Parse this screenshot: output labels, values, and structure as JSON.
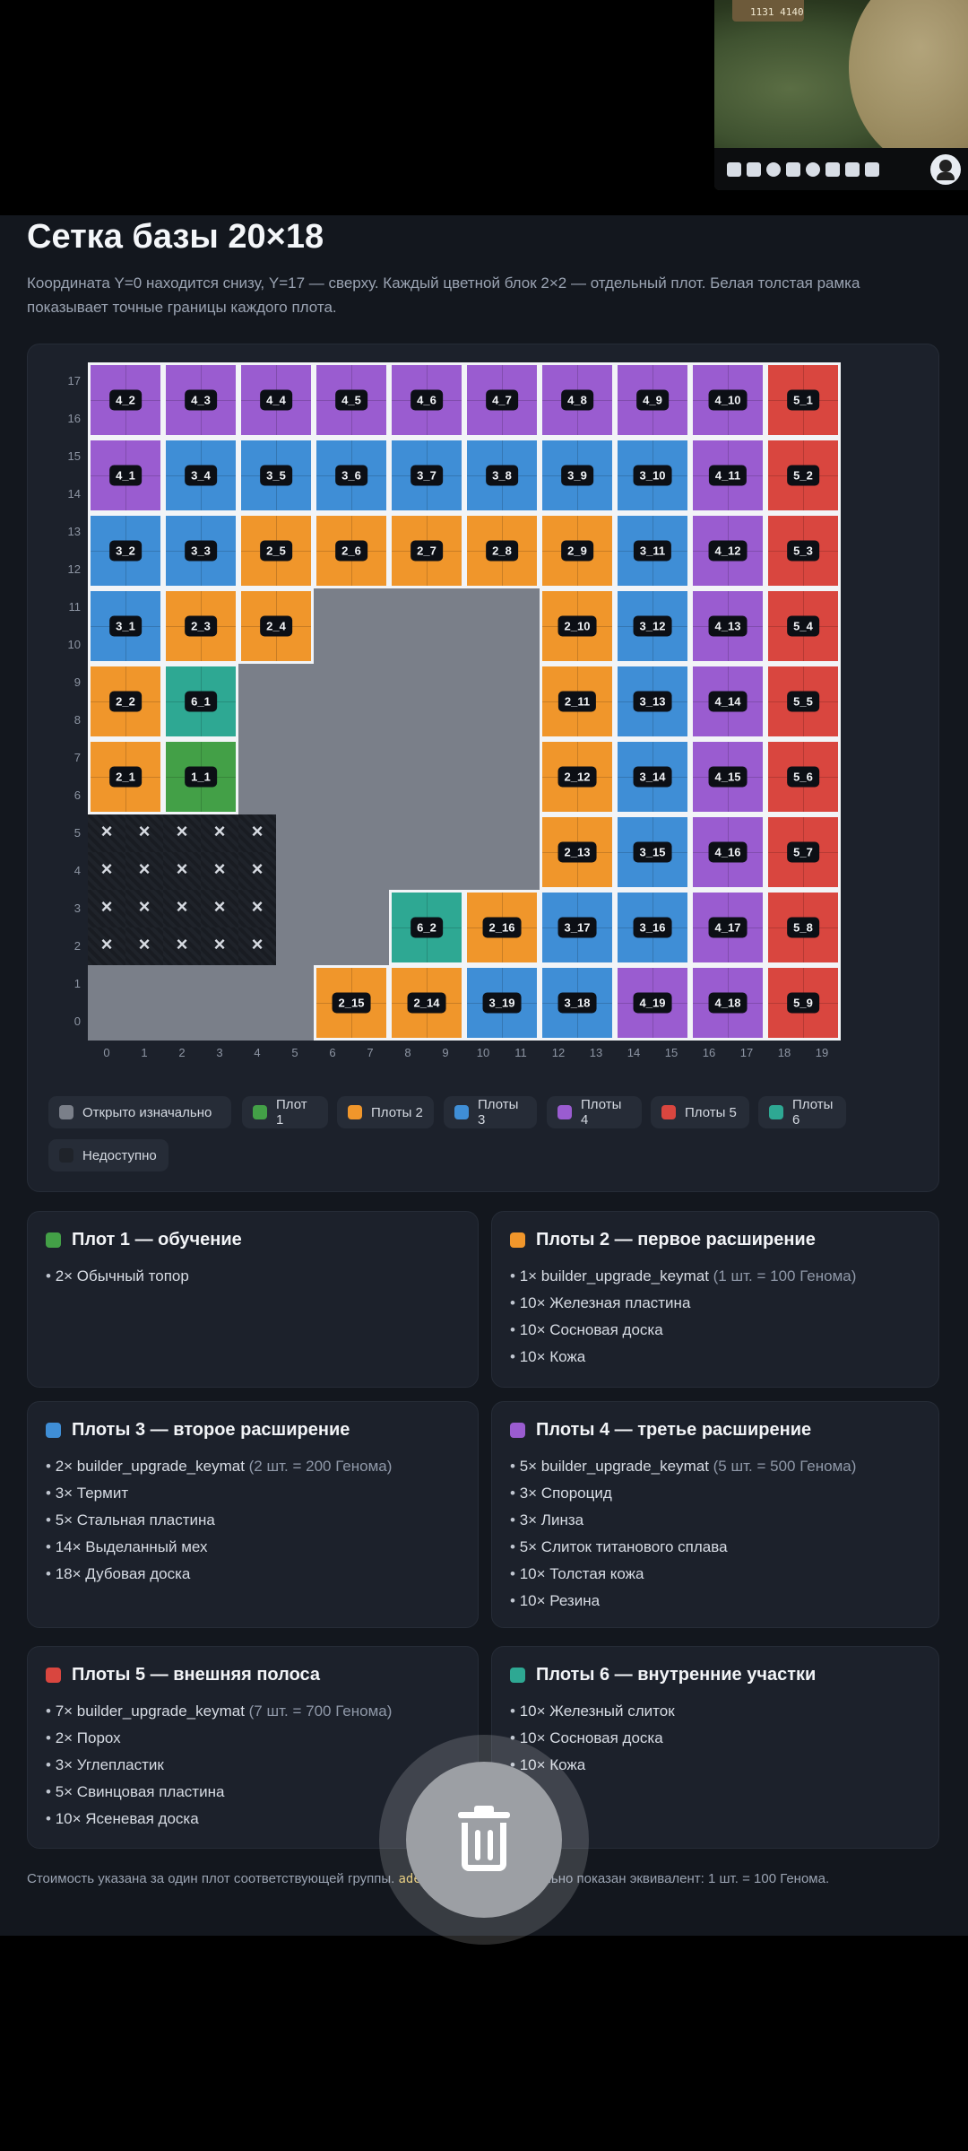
{
  "overlay": {
    "badge": "1131 4140"
  },
  "page": {
    "title": "Сетка базы 20×18",
    "description": "Координата Y=0 находится снизу, Y=17 — сверху. Каждый цветной блок 2×2 — отдельный плот. Белая толстая рамка показывает точные границы каждого плота."
  },
  "colors": {
    "open": "#7a7f89",
    "g1": "#43a047",
    "g2": "#f0962b",
    "g3": "#3f8ed6",
    "g4": "#9a5cd0",
    "g5": "#d9463f",
    "g6": "#2ea893",
    "locked": "#1f232a"
  },
  "grid": {
    "width": 20,
    "height": 18,
    "x_ticks": [
      "0",
      "1",
      "2",
      "3",
      "4",
      "5",
      "6",
      "7",
      "8",
      "9",
      "10",
      "11",
      "12",
      "13",
      "14",
      "15",
      "16",
      "17",
      "18",
      "19"
    ],
    "y_ticks": [
      "0",
      "1",
      "2",
      "3",
      "4",
      "5",
      "6",
      "7",
      "8",
      "9",
      "10",
      "11",
      "12",
      "13",
      "14",
      "15",
      "16",
      "17"
    ],
    "plots": [
      {
        "label": "4_2",
        "g": 4,
        "x": 0,
        "y": 16
      },
      {
        "label": "4_3",
        "g": 4,
        "x": 2,
        "y": 16
      },
      {
        "label": "4_4",
        "g": 4,
        "x": 4,
        "y": 16
      },
      {
        "label": "4_5",
        "g": 4,
        "x": 6,
        "y": 16
      },
      {
        "label": "4_6",
        "g": 4,
        "x": 8,
        "y": 16
      },
      {
        "label": "4_7",
        "g": 4,
        "x": 10,
        "y": 16
      },
      {
        "label": "4_8",
        "g": 4,
        "x": 12,
        "y": 16
      },
      {
        "label": "4_9",
        "g": 4,
        "x": 14,
        "y": 16
      },
      {
        "label": "4_10",
        "g": 4,
        "x": 16,
        "y": 16
      },
      {
        "label": "5_1",
        "g": 5,
        "x": 18,
        "y": 16
      },
      {
        "label": "4_1",
        "g": 4,
        "x": 0,
        "y": 14
      },
      {
        "label": "3_4",
        "g": 3,
        "x": 2,
        "y": 14
      },
      {
        "label": "3_5",
        "g": 3,
        "x": 4,
        "y": 14
      },
      {
        "label": "3_6",
        "g": 3,
        "x": 6,
        "y": 14
      },
      {
        "label": "3_7",
        "g": 3,
        "x": 8,
        "y": 14
      },
      {
        "label": "3_8",
        "g": 3,
        "x": 10,
        "y": 14
      },
      {
        "label": "3_9",
        "g": 3,
        "x": 12,
        "y": 14
      },
      {
        "label": "3_10",
        "g": 3,
        "x": 14,
        "y": 14
      },
      {
        "label": "4_11",
        "g": 4,
        "x": 16,
        "y": 14
      },
      {
        "label": "5_2",
        "g": 5,
        "x": 18,
        "y": 14
      },
      {
        "label": "3_2",
        "g": 3,
        "x": 0,
        "y": 12
      },
      {
        "label": "3_3",
        "g": 3,
        "x": 2,
        "y": 12
      },
      {
        "label": "2_5",
        "g": 2,
        "x": 4,
        "y": 12
      },
      {
        "label": "2_6",
        "g": 2,
        "x": 6,
        "y": 12
      },
      {
        "label": "2_7",
        "g": 2,
        "x": 8,
        "y": 12
      },
      {
        "label": "2_8",
        "g": 2,
        "x": 10,
        "y": 12
      },
      {
        "label": "2_9",
        "g": 2,
        "x": 12,
        "y": 12
      },
      {
        "label": "3_11",
        "g": 3,
        "x": 14,
        "y": 12
      },
      {
        "label": "4_12",
        "g": 4,
        "x": 16,
        "y": 12
      },
      {
        "label": "5_3",
        "g": 5,
        "x": 18,
        "y": 12
      },
      {
        "label": "3_1",
        "g": 3,
        "x": 0,
        "y": 10
      },
      {
        "label": "2_3",
        "g": 2,
        "x": 2,
        "y": 10
      },
      {
        "label": "2_4",
        "g": 2,
        "x": 4,
        "y": 10
      },
      {
        "label": "2_10",
        "g": 2,
        "x": 12,
        "y": 10
      },
      {
        "label": "3_12",
        "g": 3,
        "x": 14,
        "y": 10
      },
      {
        "label": "4_13",
        "g": 4,
        "x": 16,
        "y": 10
      },
      {
        "label": "5_4",
        "g": 5,
        "x": 18,
        "y": 10
      },
      {
        "label": "2_2",
        "g": 2,
        "x": 0,
        "y": 8
      },
      {
        "label": "6_1",
        "g": 6,
        "x": 2,
        "y": 8
      },
      {
        "label": "2_11",
        "g": 2,
        "x": 12,
        "y": 8
      },
      {
        "label": "3_13",
        "g": 3,
        "x": 14,
        "y": 8
      },
      {
        "label": "4_14",
        "g": 4,
        "x": 16,
        "y": 8
      },
      {
        "label": "5_5",
        "g": 5,
        "x": 18,
        "y": 8
      },
      {
        "label": "2_1",
        "g": 2,
        "x": 0,
        "y": 6
      },
      {
        "label": "1_1",
        "g": 1,
        "x": 2,
        "y": 6
      },
      {
        "label": "2_12",
        "g": 2,
        "x": 12,
        "y": 6
      },
      {
        "label": "3_14",
        "g": 3,
        "x": 14,
        "y": 6
      },
      {
        "label": "4_15",
        "g": 4,
        "x": 16,
        "y": 6
      },
      {
        "label": "5_6",
        "g": 5,
        "x": 18,
        "y": 6
      },
      {
        "label": "2_13",
        "g": 2,
        "x": 12,
        "y": 4
      },
      {
        "label": "3_15",
        "g": 3,
        "x": 14,
        "y": 4
      },
      {
        "label": "4_16",
        "g": 4,
        "x": 16,
        "y": 4
      },
      {
        "label": "5_7",
        "g": 5,
        "x": 18,
        "y": 4
      },
      {
        "label": "6_2",
        "g": 6,
        "x": 8,
        "y": 2
      },
      {
        "label": "2_16",
        "g": 2,
        "x": 10,
        "y": 2
      },
      {
        "label": "3_17",
        "g": 3,
        "x": 12,
        "y": 2
      },
      {
        "label": "3_16",
        "g": 3,
        "x": 14,
        "y": 2
      },
      {
        "label": "4_17",
        "g": 4,
        "x": 16,
        "y": 2
      },
      {
        "label": "5_8",
        "g": 5,
        "x": 18,
        "y": 2
      },
      {
        "label": "2_15",
        "g": 2,
        "x": 6,
        "y": 0
      },
      {
        "label": "2_14",
        "g": 2,
        "x": 8,
        "y": 0
      },
      {
        "label": "3_19",
        "g": 3,
        "x": 10,
        "y": 0
      },
      {
        "label": "3_18",
        "g": 3,
        "x": 12,
        "y": 0
      },
      {
        "label": "4_19",
        "g": 4,
        "x": 14,
        "y": 0
      },
      {
        "label": "4_18",
        "g": 4,
        "x": 16,
        "y": 0
      },
      {
        "label": "5_9",
        "g": 5,
        "x": 18,
        "y": 0
      }
    ],
    "locked": {
      "x0": 0,
      "x1": 4,
      "y0": 2,
      "y1": 5
    }
  },
  "legend": [
    {
      "label": "Открыто изначально",
      "color": "#7a7f89"
    },
    {
      "label": "Плот 1",
      "color": "#43a047"
    },
    {
      "label": "Плоты 2",
      "color": "#f0962b"
    },
    {
      "label": "Плоты 3",
      "color": "#3f8ed6"
    },
    {
      "label": "Плоты 4",
      "color": "#9a5cd0"
    },
    {
      "label": "Плоты 5",
      "color": "#d9463f"
    },
    {
      "label": "Плоты 6",
      "color": "#2ea893"
    },
    {
      "label": "Недоступно",
      "color": "#1f232a"
    }
  ],
  "cards": [
    {
      "title": "Плот 1 — обучение",
      "color": "#43a047",
      "items": [
        {
          "text": "2× Обычный топор",
          "note": ""
        }
      ]
    },
    {
      "title": "Плоты 2 — первое расширение",
      "color": "#f0962b",
      "items": [
        {
          "text": "1× builder_upgrade_keymat",
          "note": "(1 шт. = 100 Генома)"
        },
        {
          "text": "10× Железная пластина",
          "note": ""
        },
        {
          "text": "10× Сосновая доска",
          "note": ""
        },
        {
          "text": "10× Кожа",
          "note": ""
        }
      ]
    },
    {
      "title": "Плоты 3 — второе расширение",
      "color": "#3f8ed6",
      "items": [
        {
          "text": "2× builder_upgrade_keymat",
          "note": "(2 шт. = 200 Генома)"
        },
        {
          "text": "3× Термит",
          "note": ""
        },
        {
          "text": "5× Стальная пластина",
          "note": ""
        },
        {
          "text": "14× Выделанный мех",
          "note": ""
        },
        {
          "text": "18× Дубовая доска",
          "note": ""
        }
      ]
    },
    {
      "title": "Плоты 4 — третье расширение",
      "color": "#9a5cd0",
      "items": [
        {
          "text": "5× builder_upgrade_keymat",
          "note": "(5 шт. = 500 Генома)"
        },
        {
          "text": "3× Спороцид",
          "note": ""
        },
        {
          "text": "3× Линза",
          "note": ""
        },
        {
          "text": "5× Слиток титанового сплава",
          "note": ""
        },
        {
          "text": "10× Толстая кожа",
          "note": ""
        },
        {
          "text": "10× Резина",
          "note": ""
        }
      ]
    },
    {
      "title": "Плоты 5 — внешняя полоса",
      "color": "#d9463f",
      "items": [
        {
          "text": "7× builder_upgrade_keymat",
          "note": "(7 шт. = 700 Генома)"
        },
        {
          "text": "2× Порох",
          "note": ""
        },
        {
          "text": "3× Углепластик",
          "note": ""
        },
        {
          "text": "5× Свинцовая пластина",
          "note": ""
        },
        {
          "text": "10× Ясеневая доска",
          "note": ""
        }
      ]
    },
    {
      "title": "Плоты 6 — внутренние участки",
      "color": "#2ea893",
      "items": [
        {
          "text": "10× Железный слиток",
          "note": ""
        },
        {
          "text": "10× Сосновая доска",
          "note": ""
        },
        {
          "text": "10× Кожа",
          "note": ""
        }
      ]
    }
  ],
  "footer": {
    "before": "Стоимость указана за один плот соответствующей группы. ",
    "code": "ade_keymat",
    "after": " дополнительно показан эквивалент: 1 шт. = 100 Генома."
  }
}
